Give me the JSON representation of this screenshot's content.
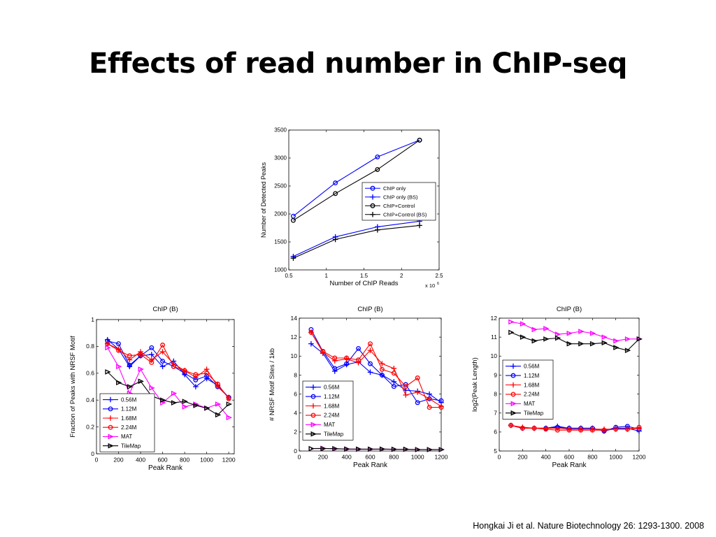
{
  "slide": {
    "title": "Effects of read number in ChIP-seq",
    "citation": "Hongkai Ji et al. Nature Biotechnology 26: 1293-1300. 2008"
  },
  "colors": {
    "blue": "#0000ff",
    "red": "#ff0000",
    "magenta": "#ff00ff",
    "black": "#000000"
  },
  "chart_data": [
    {
      "id": "chart-detected-peaks",
      "type": "line",
      "title": "",
      "xlabel": "Number of ChIP Reads",
      "ylabel": "Number of Detected Peaks",
      "x_exponent_label": "x 10",
      "x_exponent_power": "6",
      "xlim": [
        0.5,
        2.5
      ],
      "ylim": [
        1000,
        3500
      ],
      "xticks": [
        0.5,
        1,
        1.5,
        2,
        2.5
      ],
      "yticks": [
        1000,
        1500,
        2000,
        2500,
        3000,
        3500
      ],
      "grid": false,
      "legend_position": "right",
      "x": [
        0.56,
        1.12,
        1.68,
        2.24
      ],
      "series": [
        {
          "name": "ChIP only",
          "color": "#0000ff",
          "marker": "circle",
          "values": [
            1960,
            2555,
            3020,
            3320
          ]
        },
        {
          "name": "ChIP only (BS)",
          "color": "#0000ff",
          "marker": "plus",
          "values": [
            1240,
            1590,
            1770,
            1870
          ]
        },
        {
          "name": "ChIP+Control",
          "color": "#000000",
          "marker": "circle",
          "values": [
            1885,
            2365,
            2795,
            3320
          ]
        },
        {
          "name": "ChIP+Control (BS)",
          "color": "#000000",
          "marker": "plus",
          "values": [
            1210,
            1545,
            1715,
            1795
          ]
        }
      ]
    },
    {
      "id": "chart-nrsf-fraction",
      "type": "line",
      "title": "ChIP (B)",
      "xlabel": "Peak Rank",
      "ylabel": "Fraction of Peaks with NRSF Motif",
      "xlim": [
        0,
        1250
      ],
      "ylim": [
        0,
        1
      ],
      "xticks": [
        0,
        200,
        400,
        600,
        800,
        1000,
        1200
      ],
      "yticks": [
        0,
        0.2,
        0.4,
        0.6,
        0.8,
        1
      ],
      "grid": false,
      "legend_position": "bottom-left",
      "x": [
        100,
        200,
        300,
        400,
        500,
        600,
        700,
        800,
        900,
        1000,
        1100,
        1200
      ],
      "series": [
        {
          "name": "0.56M",
          "color": "#0000ff",
          "marker": "plus",
          "values": [
            0.85,
            0.78,
            0.65,
            0.73,
            0.74,
            0.65,
            0.69,
            0.59,
            0.5,
            0.56,
            0.51,
            0.42
          ]
        },
        {
          "name": "1.12M",
          "color": "#0000ff",
          "marker": "circle",
          "values": [
            0.84,
            0.82,
            0.66,
            0.73,
            0.79,
            0.69,
            0.65,
            0.6,
            0.55,
            0.58,
            0.5,
            0.42
          ]
        },
        {
          "name": "1.68M",
          "color": "#ff0000",
          "marker": "plus",
          "values": [
            0.82,
            0.78,
            0.7,
            0.76,
            0.7,
            0.76,
            0.67,
            0.62,
            0.57,
            0.63,
            0.5,
            0.42
          ]
        },
        {
          "name": "2.24M",
          "color": "#ff0000",
          "marker": "circle",
          "values": [
            0.82,
            0.77,
            0.73,
            0.74,
            0.68,
            0.81,
            0.65,
            0.62,
            0.59,
            0.6,
            0.52,
            0.41
          ]
        },
        {
          "name": "MAT",
          "color": "#ff00ff",
          "marker": "triangle-right",
          "values": [
            0.79,
            0.65,
            0.45,
            0.63,
            0.49,
            0.38,
            0.45,
            0.35,
            0.37,
            0.34,
            0.37,
            0.27
          ]
        },
        {
          "name": "TileMap",
          "color": "#000000",
          "marker": "triangle-right",
          "values": [
            0.61,
            0.53,
            0.5,
            0.54,
            0.43,
            0.4,
            0.38,
            0.39,
            0.36,
            0.34,
            0.29,
            0.37
          ]
        }
      ]
    },
    {
      "id": "chart-nrsf-sites",
      "type": "line",
      "title": "ChIP (B)",
      "xlabel": "Peak Rank",
      "ylabel": "# NRSF Motif Sites / 1kb",
      "xlim": [
        0,
        1200
      ],
      "ylim": [
        0,
        14
      ],
      "xticks": [
        0,
        200,
        400,
        600,
        800,
        1000,
        1200
      ],
      "yticks": [
        0,
        2,
        4,
        6,
        8,
        10,
        12,
        14
      ],
      "grid": false,
      "legend_position": "bottom-left",
      "x": [
        100,
        200,
        300,
        400,
        500,
        600,
        700,
        800,
        900,
        1000,
        1100,
        1200
      ],
      "series": [
        {
          "name": "0.56M",
          "color": "#0000ff",
          "marker": "plus",
          "values": [
            11.3,
            10.3,
            8.4,
            9.1,
            9.4,
            8.3,
            8.0,
            7.3,
            6.4,
            6.3,
            6.0,
            5.1
          ]
        },
        {
          "name": "1.12M",
          "color": "#0000ff",
          "marker": "circle",
          "values": [
            12.8,
            10.5,
            8.7,
            9.2,
            10.8,
            9.2,
            8.0,
            6.8,
            7.0,
            5.1,
            5.5,
            5.3
          ]
        },
        {
          "name": "1.68M",
          "color": "#ff0000",
          "marker": "plus",
          "values": [
            12.5,
            10.4,
            9.5,
            9.7,
            9.3,
            10.6,
            9.2,
            8.7,
            5.9,
            6.2,
            5.5,
            4.7
          ]
        },
        {
          "name": "2.24M",
          "color": "#ff0000",
          "marker": "circle",
          "values": [
            12.5,
            10.5,
            9.8,
            9.8,
            9.6,
            11.3,
            8.6,
            8.2,
            6.8,
            7.7,
            4.6,
            4.6
          ]
        },
        {
          "name": "MAT",
          "color": "#ff00ff",
          "marker": "triangle-right",
          "values": [
            0.25,
            0.28,
            0.22,
            0.22,
            0.18,
            0.18,
            0.2,
            0.18,
            0.18,
            0.15,
            0.15,
            0.15
          ]
        },
        {
          "name": "TileMap",
          "color": "#000000",
          "marker": "triangle-right",
          "values": [
            0.25,
            0.25,
            0.25,
            0.2,
            0.2,
            0.2,
            0.2,
            0.18,
            0.18,
            0.15,
            0.15,
            0.15
          ]
        }
      ]
    },
    {
      "id": "chart-peak-length",
      "type": "line",
      "title": "ChIP (B)",
      "xlabel": "Peak Rank",
      "ylabel": "log2(Peak Length)",
      "xlim": [
        0,
        1200
      ],
      "ylim": [
        5,
        12
      ],
      "xticks": [
        0,
        200,
        400,
        600,
        800,
        1000,
        1200
      ],
      "yticks": [
        5,
        6,
        7,
        8,
        9,
        10,
        11,
        12
      ],
      "grid": false,
      "legend_position": "middle-left",
      "x": [
        100,
        200,
        300,
        400,
        500,
        600,
        700,
        800,
        900,
        1000,
        1100,
        1200
      ],
      "series": [
        {
          "name": "0.56M",
          "color": "#0000ff",
          "marker": "plus",
          "values": [
            6.35,
            6.2,
            6.2,
            6.2,
            6.3,
            6.2,
            6.2,
            6.2,
            6.05,
            6.2,
            6.2,
            6.05
          ]
        },
        {
          "name": "1.12M",
          "color": "#0000ff",
          "marker": "circle",
          "values": [
            6.35,
            6.2,
            6.2,
            6.2,
            6.25,
            6.2,
            6.2,
            6.2,
            6.05,
            6.25,
            6.3,
            6.15
          ]
        },
        {
          "name": "1.68M",
          "color": "#ff0000",
          "marker": "plus",
          "values": [
            6.35,
            6.25,
            6.2,
            6.2,
            6.2,
            6.15,
            6.15,
            6.15,
            6.15,
            6.15,
            6.15,
            6.2
          ]
        },
        {
          "name": "2.24M",
          "color": "#ff0000",
          "marker": "circle",
          "values": [
            6.35,
            6.2,
            6.2,
            6.15,
            6.1,
            6.1,
            6.1,
            6.1,
            6.1,
            6.15,
            6.15,
            6.25
          ]
        },
        {
          "name": "MAT",
          "color": "#ff00ff",
          "marker": "triangle-right",
          "values": [
            11.8,
            11.7,
            11.4,
            11.45,
            11.15,
            11.2,
            11.3,
            11.2,
            11.0,
            10.8,
            10.9,
            10.9
          ]
        },
        {
          "name": "TileMap",
          "color": "#000000",
          "marker": "triangle-right",
          "values": [
            11.25,
            11.0,
            10.8,
            10.9,
            10.95,
            10.65,
            10.65,
            10.65,
            10.7,
            10.45,
            10.3,
            10.9
          ]
        }
      ]
    }
  ]
}
